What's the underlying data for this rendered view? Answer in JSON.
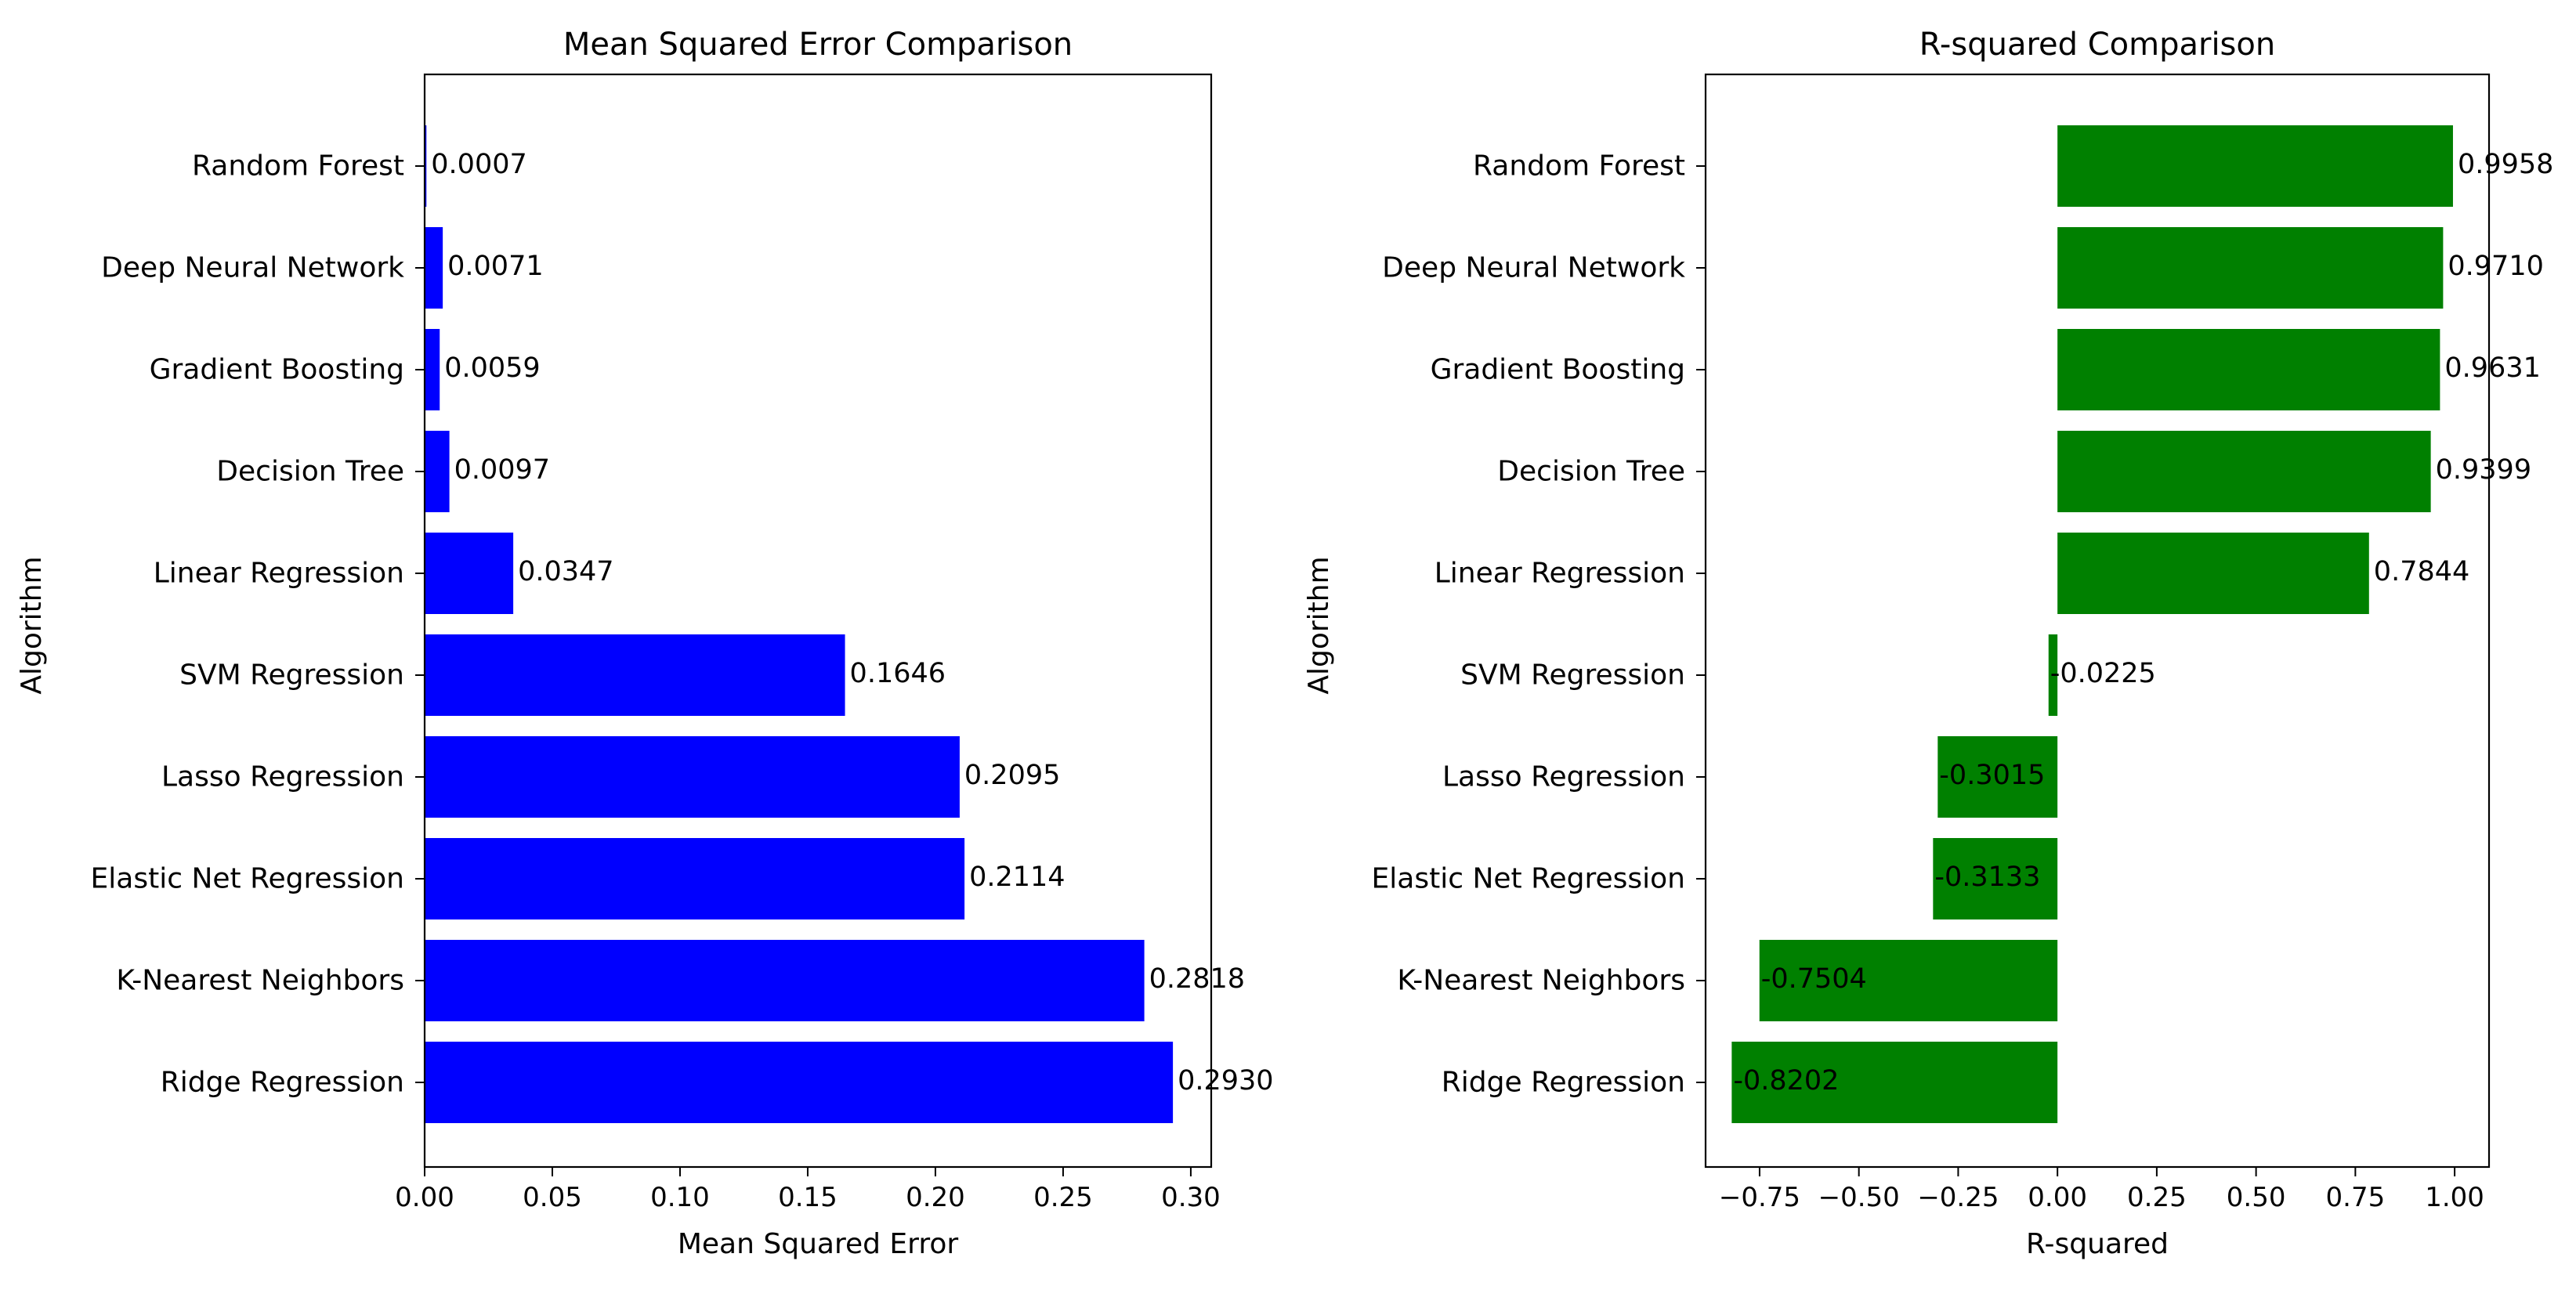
{
  "chart_data": [
    {
      "type": "bar",
      "orientation": "horizontal",
      "title": "Mean Squared Error Comparison",
      "xlabel": "Mean Squared Error",
      "ylabel": "Algorithm",
      "categories": [
        "Random Forest",
        "Deep Neural Network",
        "Gradient Boosting",
        "Decision Tree",
        "Linear Regression",
        "SVM Regression",
        "Lasso Regression",
        "Elastic Net Regression",
        "K-Nearest Neighbors",
        "Ridge Regression"
      ],
      "values": [
        0.0007,
        0.0071,
        0.0059,
        0.0097,
        0.0347,
        0.1646,
        0.2095,
        0.2114,
        0.2818,
        0.293
      ],
      "value_labels": [
        "0.0007",
        "0.0071",
        "0.0059",
        "0.0097",
        "0.0347",
        "0.1646",
        "0.2095",
        "0.2114",
        "0.2818",
        "0.2930"
      ],
      "xlim": [
        0,
        0.308
      ],
      "xticks": [
        0.0,
        0.05,
        0.1,
        0.15,
        0.2,
        0.25,
        0.3
      ],
      "xtick_labels": [
        "0.00",
        "0.05",
        "0.10",
        "0.15",
        "0.20",
        "0.25",
        "0.30"
      ],
      "color": "#0000ff",
      "grid": false,
      "legend": false
    },
    {
      "type": "bar",
      "orientation": "horizontal",
      "title": "R-squared Comparison",
      "xlabel": "R-squared",
      "ylabel": "Algorithm",
      "categories": [
        "Random Forest",
        "Deep Neural Network",
        "Gradient Boosting",
        "Decision Tree",
        "Linear Regression",
        "SVM Regression",
        "Lasso Regression",
        "Elastic Net Regression",
        "K-Nearest Neighbors",
        "Ridge Regression"
      ],
      "values": [
        0.9958,
        0.971,
        0.9631,
        0.9399,
        0.7844,
        -0.0225,
        -0.3015,
        -0.3133,
        -0.7504,
        -0.8202
      ],
      "value_labels": [
        "0.9958",
        "0.9710",
        "0.9631",
        "0.9399",
        "0.7844",
        "-0.0225",
        "-0.3015",
        "-0.3133",
        "-0.7504",
        "-0.8202"
      ],
      "xlim": [
        -0.886,
        1.0866
      ],
      "xticks": [
        -0.75,
        -0.5,
        -0.25,
        0.0,
        0.25,
        0.5,
        0.75,
        1.0
      ],
      "xtick_labels": [
        "−0.75",
        "−0.50",
        "−0.25",
        "0.00",
        "0.25",
        "0.50",
        "0.75",
        "1.00"
      ],
      "color": "#008000",
      "grid": false,
      "legend": false
    }
  ]
}
